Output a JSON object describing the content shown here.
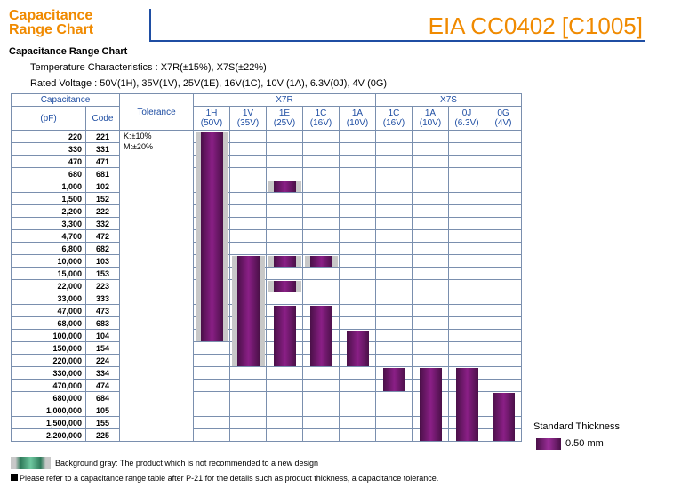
{
  "header": {
    "title": "Capacitance\nRange Chart",
    "big_title": "EIA CC0402 [C1005]"
  },
  "section_title": "Capacitance Range Chart",
  "temp_line": "Temperature Characteristics : X7R(±15%), X7S(±22%)",
  "voltage_line": "Rated Voltage : 50V(1H), 35V(1V), 25V(1E), 16V(1C), 10V (1A), 6.3V(0J), 4V (0G)",
  "table": {
    "capacitance_header": "Capacitance",
    "pf_header": "(pF)",
    "code_header": "Code",
    "tolerance_header": "Tolerance",
    "tolerance": [
      "K:±10%",
      "M:±20%"
    ],
    "groups": [
      "X7R",
      "X7S"
    ],
    "columns": [
      {
        "group": "X7R",
        "code": "1H",
        "voltage": "(50V)"
      },
      {
        "group": "X7R",
        "code": "1V",
        "voltage": "(35V)"
      },
      {
        "group": "X7R",
        "code": "1E",
        "voltage": "(25V)"
      },
      {
        "group": "X7R",
        "code": "1C",
        "voltage": "(16V)"
      },
      {
        "group": "X7R",
        "code": "1A",
        "voltage": "(10V)"
      },
      {
        "group": "X7S",
        "code": "1C",
        "voltage": "(16V)"
      },
      {
        "group": "X7S",
        "code": "1A",
        "voltage": "(10V)"
      },
      {
        "group": "X7S",
        "code": "0J",
        "voltage": "(6.3V)"
      },
      {
        "group": "X7S",
        "code": "0G",
        "voltage": "(4V)"
      }
    ],
    "rows": [
      {
        "cap": "220",
        "code": "221"
      },
      {
        "cap": "330",
        "code": "331"
      },
      {
        "cap": "470",
        "code": "471"
      },
      {
        "cap": "680",
        "code": "681"
      },
      {
        "cap": "1,000",
        "code": "102"
      },
      {
        "cap": "1,500",
        "code": "152"
      },
      {
        "cap": "2,200",
        "code": "222"
      },
      {
        "cap": "3,300",
        "code": "332"
      },
      {
        "cap": "4,700",
        "code": "472"
      },
      {
        "cap": "6,800",
        "code": "682"
      },
      {
        "cap": "10,000",
        "code": "103"
      },
      {
        "cap": "15,000",
        "code": "153"
      },
      {
        "cap": "22,000",
        "code": "223"
      },
      {
        "cap": "33,000",
        "code": "333"
      },
      {
        "cap": "47,000",
        "code": "473"
      },
      {
        "cap": "68,000",
        "code": "683"
      },
      {
        "cap": "100,000",
        "code": "104"
      },
      {
        "cap": "150,000",
        "code": "154"
      },
      {
        "cap": "220,000",
        "code": "224"
      },
      {
        "cap": "330,000",
        "code": "334"
      },
      {
        "cap": "470,000",
        "code": "474"
      },
      {
        "cap": "680,000",
        "code": "684"
      },
      {
        "cap": "1,000,000",
        "code": "105"
      },
      {
        "cap": "1,500,000",
        "code": "155"
      },
      {
        "cap": "2,200,000",
        "code": "225"
      }
    ],
    "availability_bars": [
      {
        "column": 0,
        "from_row": 0,
        "to_row": 16,
        "gray": true
      },
      {
        "column": 1,
        "from_row": 10,
        "to_row": 18,
        "gray": true
      },
      {
        "column": 2,
        "from_row": 4,
        "to_row": 4,
        "gray": true
      },
      {
        "column": 2,
        "from_row": 10,
        "to_row": 10,
        "gray": true
      },
      {
        "column": 2,
        "from_row": 12,
        "to_row": 12,
        "gray": true
      },
      {
        "column": 2,
        "from_row": 14,
        "to_row": 18,
        "gray": false
      },
      {
        "column": 3,
        "from_row": 10,
        "to_row": 10,
        "gray": true
      },
      {
        "column": 3,
        "from_row": 14,
        "to_row": 18,
        "gray": false
      },
      {
        "column": 4,
        "from_row": 16,
        "to_row": 18,
        "gray": false
      },
      {
        "column": 5,
        "from_row": 19,
        "to_row": 20,
        "gray": false
      },
      {
        "column": 6,
        "from_row": 19,
        "to_row": 24,
        "gray": false
      },
      {
        "column": 7,
        "from_row": 19,
        "to_row": 24,
        "gray": false
      },
      {
        "column": 8,
        "from_row": 21,
        "to_row": 24,
        "gray": false
      }
    ]
  },
  "legend": {
    "title": "Standard Thickness",
    "value": "0.50 mm"
  },
  "notes": {
    "gray": "Background gray: The product which is not recommended to a new design",
    "refer": "Please refer to a capacitance range table after P-21 for the details such as product thickness, a capacitance tolerance."
  },
  "colors": {
    "accent": "#f08a00",
    "blue": "#1f4ea3",
    "bar_purple": "#8a1f86",
    "gray": "#c8c8c8"
  }
}
